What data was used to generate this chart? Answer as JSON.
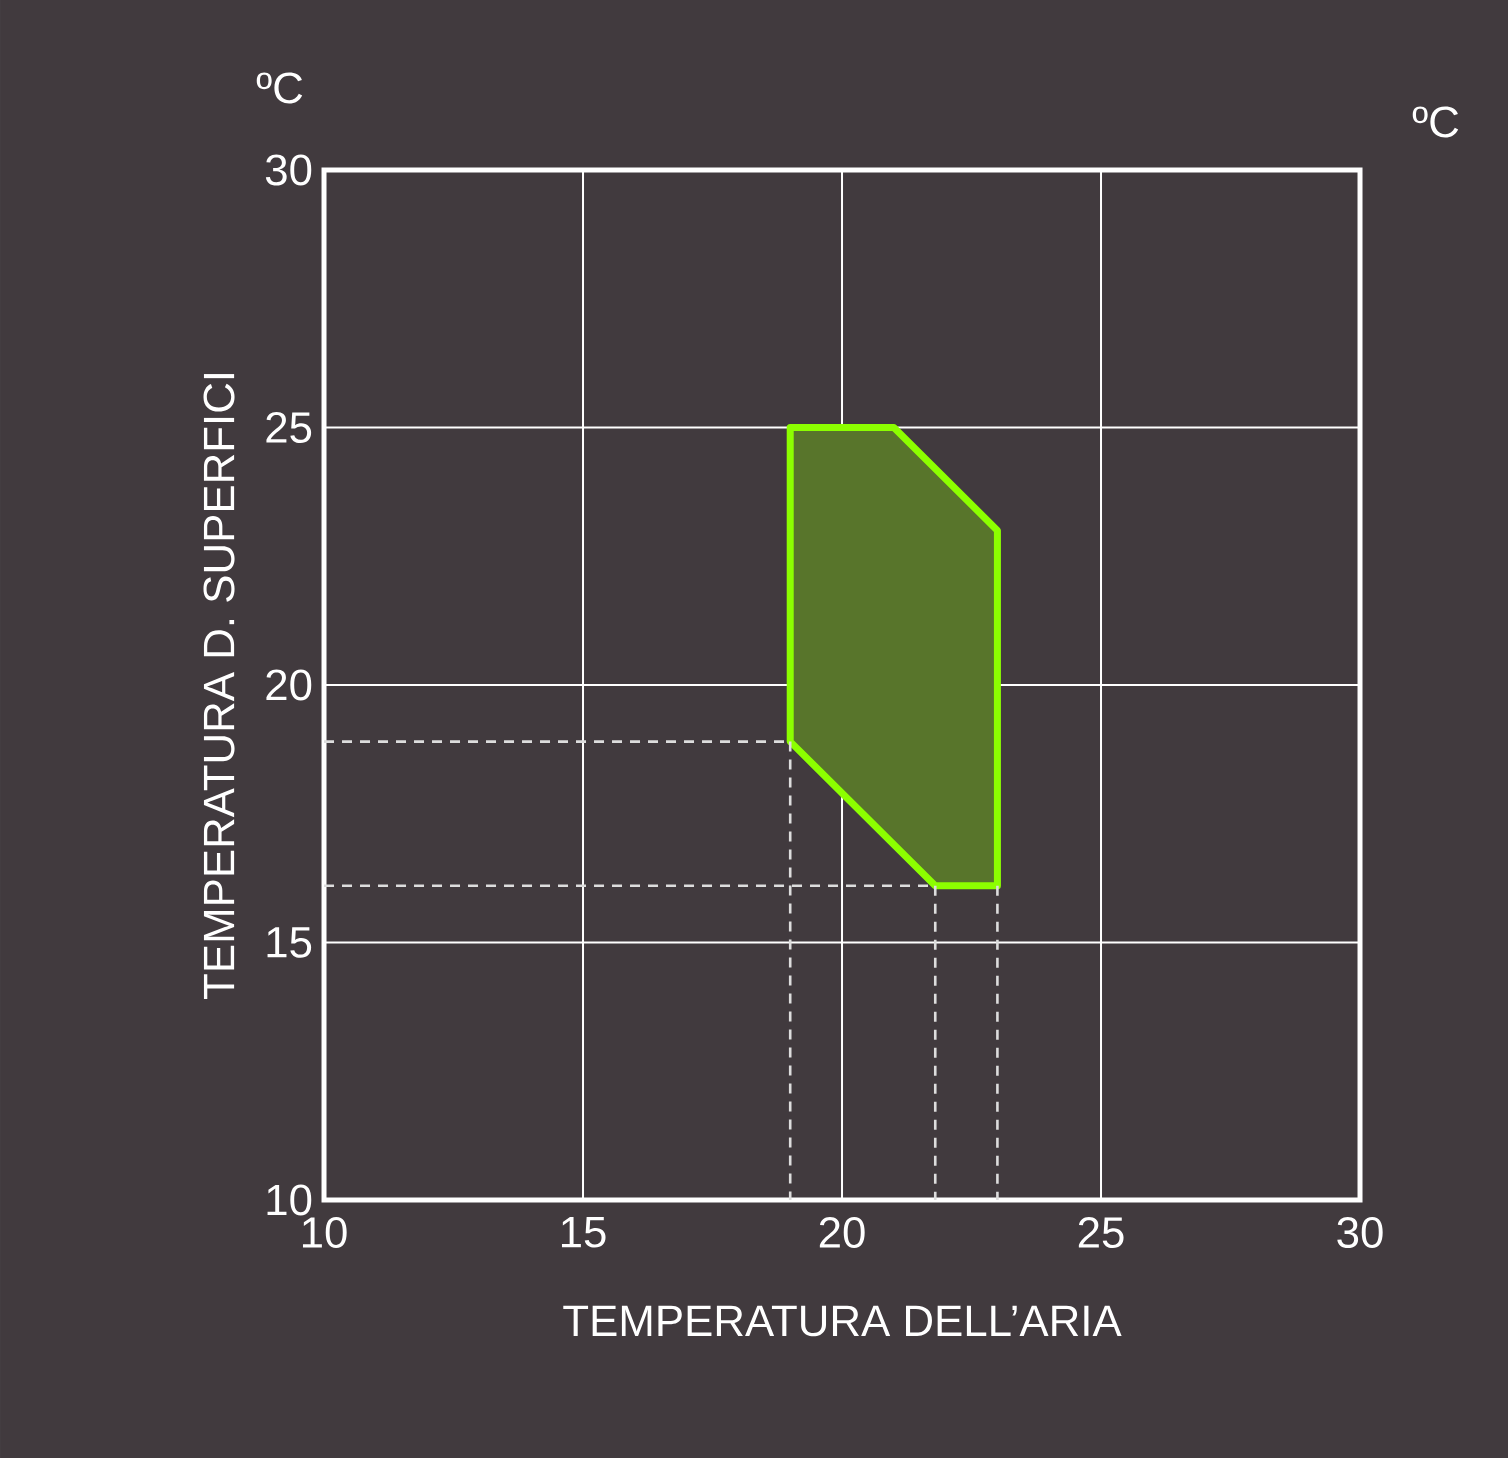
{
  "chart_data": {
    "type": "area",
    "xlabel": "TEMPERATURA DELL’ARIA",
    "ylabel": "TEMPERATURA D. SUPERFICI",
    "annotations": [
      "ºC",
      "ºC"
    ],
    "xlim": [
      10,
      30
    ],
    "xticks": [
      10,
      15,
      20,
      25,
      30
    ],
    "ylim": [
      10,
      30
    ],
    "yticks": [
      10,
      15,
      20,
      25,
      30
    ],
    "grid": true,
    "series": [
      {
        "color": "#8cff00",
        "x": [
          19,
          21,
          23,
          23,
          21.8,
          19
        ],
        "values": [
          25,
          25,
          23,
          16.1,
          16.1,
          18.9
        ]
      },
      {
        "type": "line",
        "line_style": "dashed",
        "color": "#dddddd",
        "x": [
          10,
          19
        ],
        "values": [
          18.9,
          18.9
        ]
      },
      {
        "type": "line",
        "line_style": "dashed",
        "color": "#dddddd",
        "x": [
          19,
          19
        ],
        "values": [
          18.9,
          10
        ]
      },
      {
        "type": "line",
        "line_style": "dashed",
        "color": "#dddddd",
        "x": [
          10,
          21.8
        ],
        "values": [
          16.1,
          16.1
        ]
      },
      {
        "type": "line",
        "line_style": "dashed",
        "color": "#dddddd",
        "x": [
          21.8,
          21.8
        ],
        "values": [
          16.1,
          10
        ]
      },
      {
        "type": "line",
        "line_style": "dashed",
        "color": "#dddddd",
        "x": [
          23,
          23
        ],
        "values": [
          16.1,
          10
        ]
      }
    ]
  }
}
